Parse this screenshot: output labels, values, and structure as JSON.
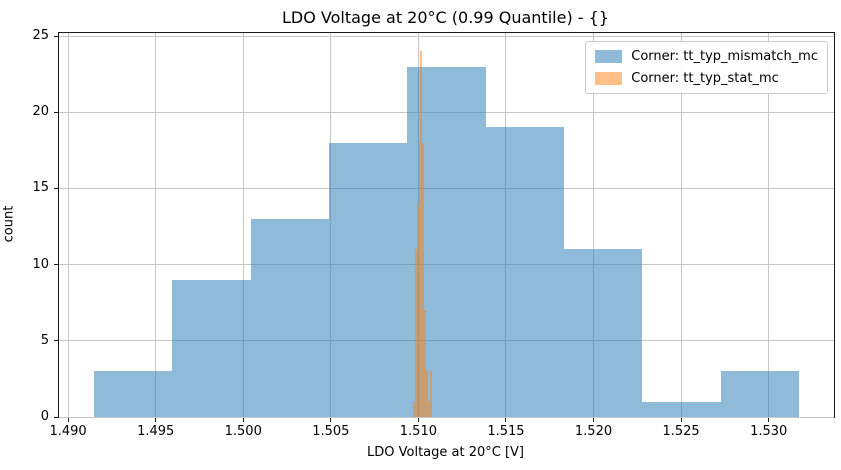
{
  "chart_data": {
    "type": "histogram",
    "title": "LDO Voltage at 20°C (0.99 Quantile) - {}",
    "xlabel": "LDO Voltage at 20°C [V]",
    "ylabel": "count",
    "xlim": [
      1.48948,
      1.53373
    ],
    "ylim": [
      0,
      25.2
    ],
    "x_ticks": [
      1.49,
      1.495,
      1.5,
      1.505,
      1.51,
      1.515,
      1.52,
      1.525,
      1.53
    ],
    "x_tick_labels": [
      "1.490",
      "1.495",
      "1.500",
      "1.505",
      "1.510",
      "1.515",
      "1.520",
      "1.525",
      "1.530"
    ],
    "y_ticks": [
      0,
      5,
      10,
      15,
      20,
      25
    ],
    "y_tick_labels": [
      "0",
      "5",
      "10",
      "15",
      "20",
      "25"
    ],
    "grid": true,
    "grid_color": "#c6c6c6",
    "legend_position": "upper right",
    "series": [
      {
        "name": "Corner: tt_typ_mismatch_mc",
        "color": "#1f77b4",
        "alpha": 0.5,
        "bin_start": 1.49149,
        "bin_width": 0.00447,
        "counts": [
          3,
          9,
          13,
          18,
          23,
          19,
          11,
          1,
          3
        ]
      },
      {
        "name": "Corner: tt_typ_stat_mc",
        "color": "#ff7f0e",
        "alpha": 0.5,
        "bin_start": 1.50968,
        "bin_width": 0.000109,
        "counts": [
          1,
          11,
          14,
          18,
          24,
          18,
          7,
          3,
          1,
          3
        ]
      }
    ]
  }
}
